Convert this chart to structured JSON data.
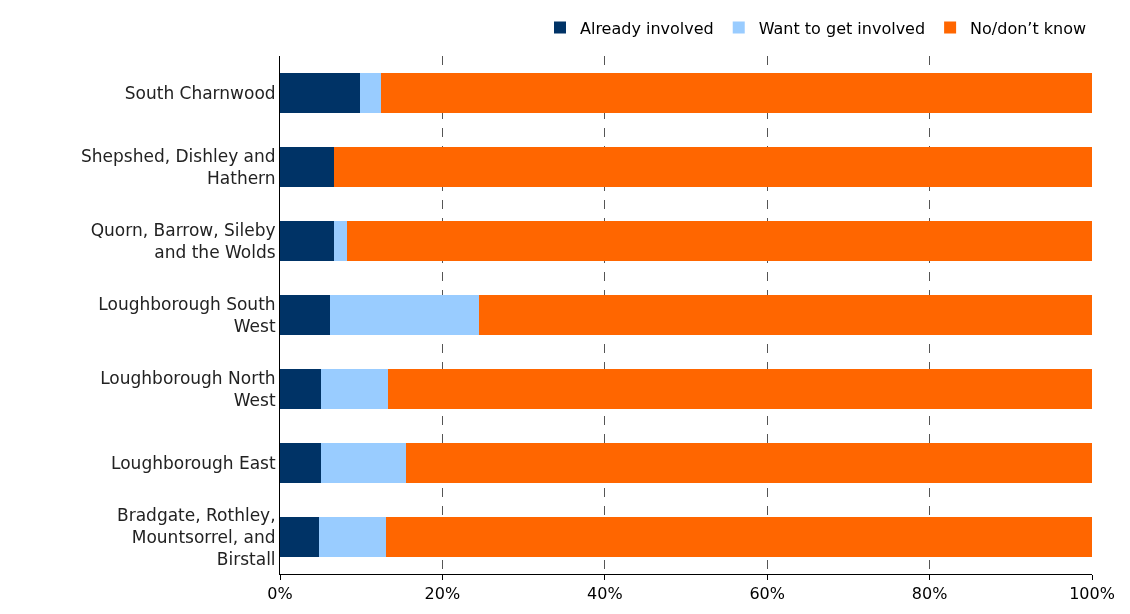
{
  "chart_data": {
    "type": "bar",
    "orientation": "horizontal",
    "stacked": true,
    "categories": [
      "South Charnwood",
      "Shepshed, Dishley and Hathern",
      "Quorn, Barrow, Sileby and the Wolds",
      "Loughborough South West",
      "Loughborough North West",
      "Loughborough East",
      "Bradgate, Rothley, Mountsorrel, and Birstall"
    ],
    "series": [
      {
        "name": "Already involved",
        "color": "#003366",
        "values": [
          9.9,
          6.6,
          6.6,
          6.1,
          5.0,
          5.1,
          4.8
        ]
      },
      {
        "name": "Want to get involved",
        "color": "#99ccff",
        "values": [
          2.5,
          0,
          1.7,
          18.4,
          8.3,
          10.4,
          8.2
        ]
      },
      {
        "name": "No/don’t know",
        "color": "#ff6600",
        "values": [
          87.6,
          93.4,
          91.7,
          75.5,
          86.7,
          84.5,
          87.0
        ]
      }
    ],
    "xlim": [
      0,
      100
    ],
    "xticks": [
      {
        "value": 0,
        "label": "0%"
      },
      {
        "value": 20,
        "label": "20%"
      },
      {
        "value": 40,
        "label": "40%"
      },
      {
        "value": 60,
        "label": "60%"
      },
      {
        "value": 80,
        "label": "80%"
      },
      {
        "value": 100,
        "label": "100%"
      }
    ],
    "grid": "x",
    "legend": "top right"
  }
}
